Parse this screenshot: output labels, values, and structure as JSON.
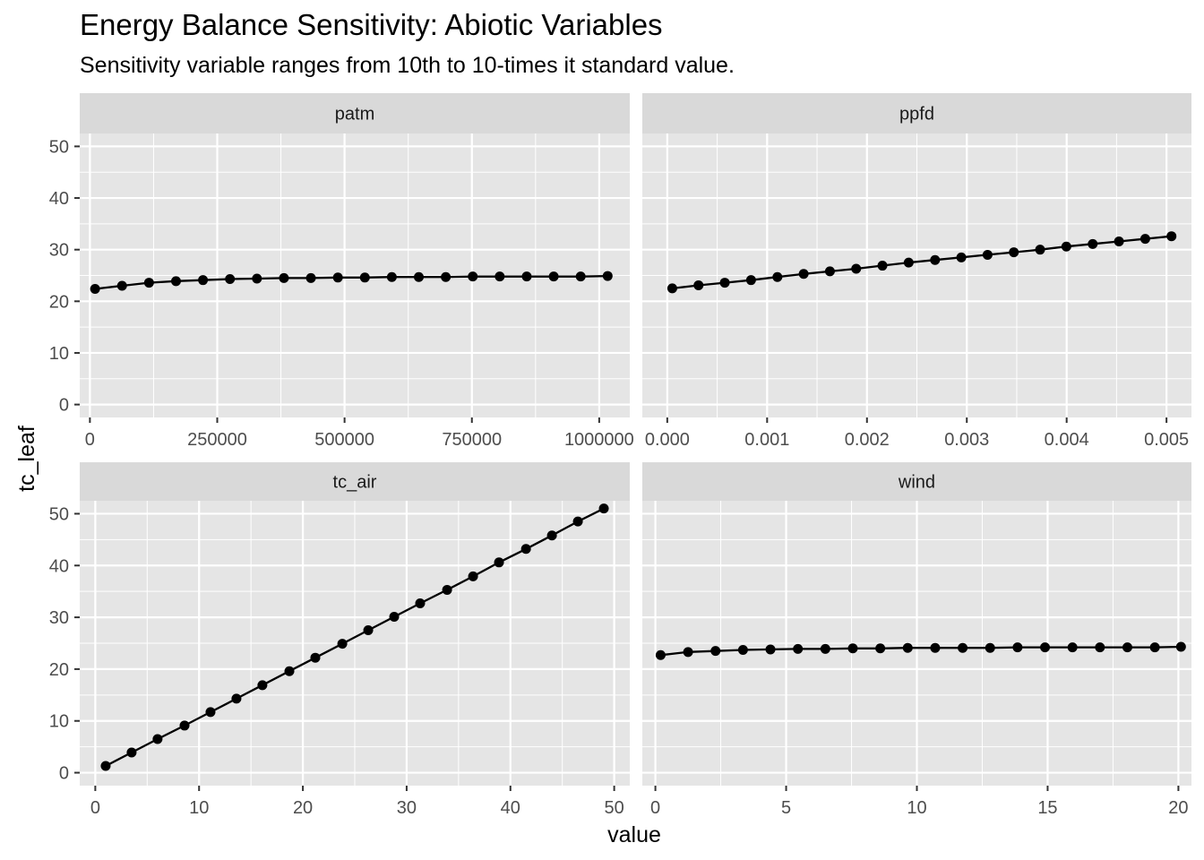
{
  "title": "Energy Balance Sensitivity: Abiotic Variables",
  "subtitle": "Sensitivity variable ranges from 10th to 10-times it standard value.",
  "ylabel": "tc_leaf",
  "xlabel": "value",
  "colors": {
    "panel_bg": "#e5e5e5",
    "strip_bg": "#d9d9d9",
    "grid": "#ffffff",
    "line": "#000000",
    "axis_text": "#4d4d4d"
  },
  "chart_data": [
    {
      "type": "line",
      "facet": "patm",
      "xlim": [
        -20000,
        1060000
      ],
      "ylim": [
        -2.5,
        52.5
      ],
      "xticks": [
        0,
        250000,
        500000,
        750000,
        1000000
      ],
      "xtick_labels": [
        "0",
        "250000",
        "500000",
        "750000",
        "1000000"
      ],
      "yticks": [
        0,
        10,
        20,
        30,
        40,
        50
      ],
      "ytick_labels": [
        "0",
        "10",
        "20",
        "30",
        "40",
        "50"
      ],
      "x": [
        10132.5,
        63103,
        116073,
        169044,
        222015,
        274985,
        327956,
        380926,
        433897,
        486867,
        539838,
        592808,
        645779,
        698749,
        751720,
        804690,
        857661,
        910632,
        963602,
        1016573
      ],
      "y": [
        22.4,
        23.0,
        23.6,
        23.9,
        24.1,
        24.3,
        24.4,
        24.5,
        24.5,
        24.6,
        24.6,
        24.7,
        24.7,
        24.7,
        24.8,
        24.8,
        24.8,
        24.8,
        24.8,
        24.9
      ],
      "grid": true
    },
    {
      "type": "line",
      "facet": "ppfd",
      "xlim": [
        -0.00025,
        0.00525
      ],
      "ylim": [
        -2.5,
        52.5
      ],
      "xticks": [
        0,
        0.001,
        0.002,
        0.003,
        0.004,
        0.005
      ],
      "xtick_labels": [
        "0.000",
        "0.001",
        "0.002",
        "0.003",
        "0.004",
        "0.005"
      ],
      "yticks": [
        0,
        10,
        20,
        30,
        40,
        50
      ],
      "ytick_labels": [
        "0",
        "10",
        "20",
        "30",
        "40",
        "50"
      ],
      "x": [
        5e-05,
        0.000313,
        0.000576,
        0.000839,
        0.001103,
        0.001366,
        0.001629,
        0.001892,
        0.002155,
        0.002418,
        0.002682,
        0.002945,
        0.003208,
        0.003471,
        0.003734,
        0.003997,
        0.004261,
        0.004524,
        0.004787,
        0.00505
      ],
      "y": [
        22.5,
        23.1,
        23.6,
        24.1,
        24.7,
        25.3,
        25.8,
        26.3,
        26.9,
        27.5,
        28.0,
        28.5,
        29.0,
        29.5,
        30.0,
        30.6,
        31.1,
        31.6,
        32.1,
        32.6
      ],
      "grid": true
    },
    {
      "type": "line",
      "facet": "tc_air",
      "xlim": [
        -1.5,
        51.5
      ],
      "ylim": [
        -2.5,
        52.5
      ],
      "xticks": [
        0,
        10,
        20,
        30,
        40,
        50
      ],
      "xtick_labels": [
        "0",
        "10",
        "20",
        "30",
        "40",
        "50"
      ],
      "yticks": [
        0,
        10,
        20,
        30,
        40,
        50
      ],
      "ytick_labels": [
        "0",
        "10",
        "20",
        "30",
        "40",
        "50"
      ],
      "x": [
        1.0,
        3.5,
        6.0,
        8.6,
        11.1,
        13.6,
        16.1,
        18.7,
        21.2,
        23.8,
        26.3,
        28.8,
        31.3,
        33.9,
        36.4,
        38.9,
        41.5,
        44.0,
        46.5,
        49.0
      ],
      "y": [
        1.3,
        3.9,
        6.5,
        9.1,
        11.7,
        14.3,
        16.9,
        19.6,
        22.2,
        24.9,
        27.5,
        30.1,
        32.7,
        35.3,
        37.9,
        40.6,
        43.2,
        45.8,
        48.5,
        51.0
      ],
      "grid": true
    },
    {
      "type": "line",
      "facet": "wind",
      "xlim": [
        -0.5,
        20.5
      ],
      "ylim": [
        -2.5,
        52.5
      ],
      "xticks": [
        0,
        5,
        10,
        15,
        20
      ],
      "xtick_labels": [
        "0",
        "5",
        "10",
        "15",
        "20"
      ],
      "yticks": [
        0,
        10,
        20,
        30,
        40,
        50
      ],
      "ytick_labels": [
        "0",
        "10",
        "20",
        "30",
        "40",
        "50"
      ],
      "x": [
        0.2,
        1.25,
        2.3,
        3.35,
        4.4,
        5.45,
        6.5,
        7.55,
        8.6,
        9.65,
        10.7,
        11.75,
        12.8,
        13.85,
        14.9,
        15.95,
        17.0,
        18.05,
        19.1,
        20.1
      ],
      "y": [
        22.7,
        23.3,
        23.5,
        23.7,
        23.8,
        23.9,
        23.9,
        24.0,
        24.0,
        24.1,
        24.1,
        24.1,
        24.1,
        24.2,
        24.2,
        24.2,
        24.2,
        24.2,
        24.2,
        24.3
      ],
      "grid": true
    }
  ]
}
